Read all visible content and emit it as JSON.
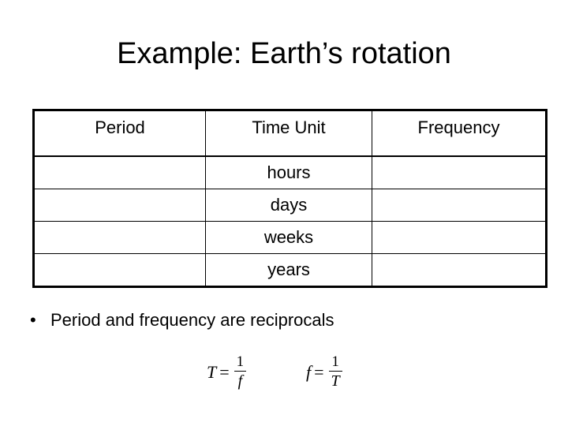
{
  "title": "Example: Earth’s rotation",
  "table": {
    "headers": [
      "Period",
      "Time Unit",
      "Frequency"
    ],
    "rows": [
      [
        "",
        "hours",
        ""
      ],
      [
        "",
        "days",
        ""
      ],
      [
        "",
        "weeks",
        ""
      ],
      [
        "",
        "years",
        ""
      ]
    ]
  },
  "bullets": [
    {
      "marker": "•",
      "text": "Period and frequency are reciprocals"
    }
  ],
  "formulas": [
    {
      "lhs": "T",
      "eq": "=",
      "numerator": "1",
      "denominator": "f"
    },
    {
      "lhs": "f",
      "eq": "=",
      "numerator": "1",
      "denominator": "T"
    }
  ]
}
